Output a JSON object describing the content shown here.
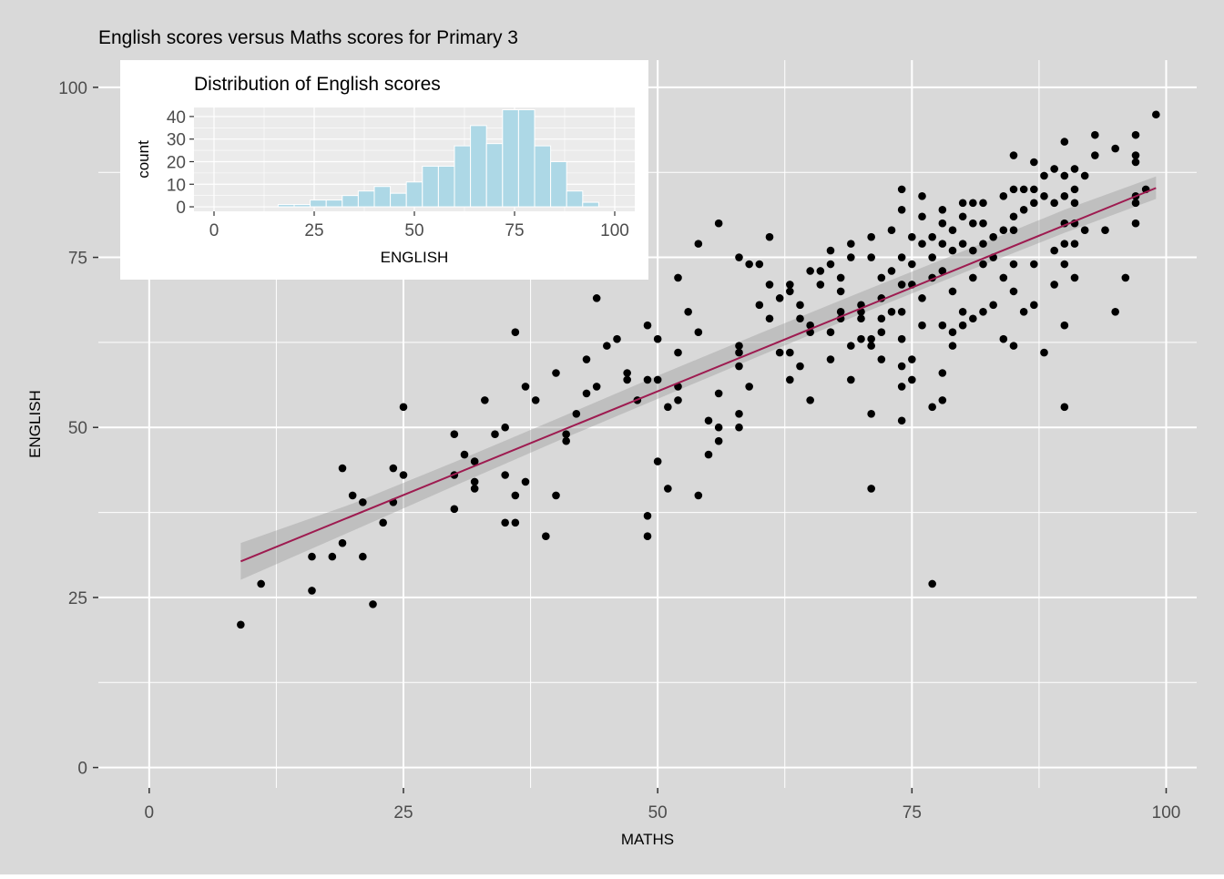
{
  "chart_data": [
    {
      "type": "scatter",
      "title": "English scores versus Maths scores for Primary 3",
      "xlabel": "MATHS",
      "ylabel": "ENGLISH",
      "xlim": [
        -5,
        103
      ],
      "ylim": [
        -3,
        104
      ],
      "x_ticks": [
        0,
        25,
        50,
        75,
        100
      ],
      "y_ticks": [
        0,
        25,
        50,
        75,
        100
      ],
      "x_tick_labels": [
        "0",
        "25",
        "50",
        "75",
        "100"
      ],
      "y_tick_labels": [
        "0",
        "25",
        "50",
        "75",
        "100"
      ],
      "grid": true,
      "points": [
        [
          9,
          21
        ],
        [
          11,
          27
        ],
        [
          16,
          26
        ],
        [
          16,
          31
        ],
        [
          18,
          31
        ],
        [
          19,
          33
        ],
        [
          19,
          44
        ],
        [
          20,
          40
        ],
        [
          21,
          39
        ],
        [
          21,
          31
        ],
        [
          22,
          24
        ],
        [
          23,
          36
        ],
        [
          24,
          44
        ],
        [
          24,
          39
        ],
        [
          25,
          43
        ],
        [
          25,
          53
        ],
        [
          30,
          49
        ],
        [
          30,
          43
        ],
        [
          30,
          38
        ],
        [
          31,
          46
        ],
        [
          32,
          45
        ],
        [
          32,
          41
        ],
        [
          32,
          42
        ],
        [
          33,
          54
        ],
        [
          34,
          49
        ],
        [
          35,
          50
        ],
        [
          35,
          43
        ],
        [
          35,
          36
        ],
        [
          36,
          36
        ],
        [
          36,
          40
        ],
        [
          36,
          64
        ],
        [
          37,
          56
        ],
        [
          37,
          42
        ],
        [
          38,
          54
        ],
        [
          39,
          34
        ],
        [
          40,
          58
        ],
        [
          40,
          40
        ],
        [
          41,
          48
        ],
        [
          41,
          49
        ],
        [
          42,
          52
        ],
        [
          43,
          55
        ],
        [
          43,
          60
        ],
        [
          44,
          56
        ],
        [
          44,
          69
        ],
        [
          45,
          62
        ],
        [
          46,
          63
        ],
        [
          47,
          58
        ],
        [
          47,
          57
        ],
        [
          48,
          54
        ],
        [
          49,
          65
        ],
        [
          49,
          37
        ],
        [
          49,
          34
        ],
        [
          49,
          57
        ],
        [
          50,
          57
        ],
        [
          50,
          45
        ],
        [
          50,
          63
        ],
        [
          51,
          41
        ],
        [
          51,
          53
        ],
        [
          52,
          56
        ],
        [
          52,
          54
        ],
        [
          52,
          61
        ],
        [
          52,
          72
        ],
        [
          53,
          67
        ],
        [
          54,
          40
        ],
        [
          54,
          64
        ],
        [
          54,
          77
        ],
        [
          55,
          46
        ],
        [
          55,
          51
        ],
        [
          56,
          48
        ],
        [
          56,
          50
        ],
        [
          56,
          55
        ],
        [
          56,
          80
        ],
        [
          58,
          75
        ],
        [
          58,
          61
        ],
        [
          58,
          62
        ],
        [
          58,
          59
        ],
        [
          58,
          52
        ],
        [
          58,
          50
        ],
        [
          59,
          74
        ],
        [
          59,
          56
        ],
        [
          60,
          74
        ],
        [
          60,
          68
        ],
        [
          61,
          78
        ],
        [
          61,
          66
        ],
        [
          61,
          71
        ],
        [
          62,
          69
        ],
        [
          62,
          61
        ],
        [
          63,
          57
        ],
        [
          63,
          61
        ],
        [
          63,
          70
        ],
        [
          63,
          71
        ],
        [
          64,
          68
        ],
        [
          64,
          66
        ],
        [
          64,
          59
        ],
        [
          65,
          54
        ],
        [
          65,
          65
        ],
        [
          65,
          64
        ],
        [
          65,
          73
        ],
        [
          66,
          73
        ],
        [
          66,
          71
        ],
        [
          67,
          76
        ],
        [
          67,
          74
        ],
        [
          67,
          60
        ],
        [
          67,
          64
        ],
        [
          68,
          67
        ],
        [
          68,
          66
        ],
        [
          68,
          70
        ],
        [
          68,
          72
        ],
        [
          69,
          77
        ],
        [
          69,
          75
        ],
        [
          69,
          57
        ],
        [
          69,
          62
        ],
        [
          70,
          68
        ],
        [
          70,
          67
        ],
        [
          70,
          66
        ],
        [
          70,
          63
        ],
        [
          71,
          75
        ],
        [
          71,
          78
        ],
        [
          71,
          63
        ],
        [
          71,
          62
        ],
        [
          71,
          52
        ],
        [
          71,
          41
        ],
        [
          72,
          72
        ],
        [
          72,
          69
        ],
        [
          72,
          64
        ],
        [
          72,
          60
        ],
        [
          72,
          66
        ],
        [
          73,
          73
        ],
        [
          73,
          67
        ],
        [
          73,
          79
        ],
        [
          74,
          85
        ],
        [
          74,
          82
        ],
        [
          74,
          75
        ],
        [
          74,
          71
        ],
        [
          74,
          67
        ],
        [
          74,
          63
        ],
        [
          74,
          59
        ],
        [
          74,
          56
        ],
        [
          74,
          51
        ],
        [
          75,
          78
        ],
        [
          75,
          74
        ],
        [
          75,
          71
        ],
        [
          75,
          60
        ],
        [
          75,
          57
        ],
        [
          76,
          84
        ],
        [
          76,
          81
        ],
        [
          76,
          77
        ],
        [
          76,
          69
        ],
        [
          76,
          65
        ],
        [
          77,
          75
        ],
        [
          77,
          78
        ],
        [
          77,
          72
        ],
        [
          77,
          53
        ],
        [
          77,
          27
        ],
        [
          78,
          82
        ],
        [
          78,
          80
        ],
        [
          78,
          77
        ],
        [
          78,
          73
        ],
        [
          78,
          65
        ],
        [
          78,
          58
        ],
        [
          78,
          54
        ],
        [
          79,
          79
        ],
        [
          79,
          76
        ],
        [
          79,
          70
        ],
        [
          79,
          64
        ],
        [
          79,
          62
        ],
        [
          80,
          83
        ],
        [
          80,
          81
        ],
        [
          80,
          77
        ],
        [
          80,
          67
        ],
        [
          80,
          65
        ],
        [
          81,
          83
        ],
        [
          81,
          80
        ],
        [
          81,
          76
        ],
        [
          81,
          72
        ],
        [
          81,
          66
        ],
        [
          82,
          83
        ],
        [
          82,
          80
        ],
        [
          82,
          77
        ],
        [
          82,
          74
        ],
        [
          82,
          67
        ],
        [
          83,
          78
        ],
        [
          83,
          75
        ],
        [
          83,
          68
        ],
        [
          84,
          84
        ],
        [
          84,
          79
        ],
        [
          84,
          72
        ],
        [
          84,
          63
        ],
        [
          85,
          90
        ],
        [
          85,
          85
        ],
        [
          85,
          81
        ],
        [
          85,
          79
        ],
        [
          85,
          74
        ],
        [
          85,
          70
        ],
        [
          85,
          62
        ],
        [
          86,
          85
        ],
        [
          86,
          82
        ],
        [
          86,
          67
        ],
        [
          87,
          89
        ],
        [
          87,
          85
        ],
        [
          87,
          83
        ],
        [
          87,
          74
        ],
        [
          87,
          68
        ],
        [
          88,
          87
        ],
        [
          88,
          84
        ],
        [
          88,
          61
        ],
        [
          89,
          88
        ],
        [
          89,
          83
        ],
        [
          89,
          76
        ],
        [
          89,
          71
        ],
        [
          90,
          92
        ],
        [
          90,
          87
        ],
        [
          90,
          84
        ],
        [
          90,
          80
        ],
        [
          90,
          77
        ],
        [
          90,
          74
        ],
        [
          90,
          65
        ],
        [
          90,
          53
        ],
        [
          91,
          88
        ],
        [
          91,
          85
        ],
        [
          91,
          83
        ],
        [
          91,
          80
        ],
        [
          91,
          77
        ],
        [
          91,
          72
        ],
        [
          92,
          87
        ],
        [
          92,
          79
        ],
        [
          93,
          93
        ],
        [
          93,
          90
        ],
        [
          94,
          79
        ],
        [
          95,
          91
        ],
        [
          95,
          67
        ],
        [
          96,
          72
        ],
        [
          97,
          93
        ],
        [
          97,
          90
        ],
        [
          97,
          89
        ],
        [
          97,
          84
        ],
        [
          97,
          83
        ],
        [
          97,
          80
        ],
        [
          98,
          85
        ],
        [
          99,
          96
        ]
      ],
      "trend_line": {
        "x": [
          9,
          99
        ],
        "y": [
          30.3,
          85.2
        ],
        "color": "#9e1b50"
      },
      "confidence_band": {
        "x": [
          9,
          20,
          30,
          40,
          50,
          60,
          70,
          80,
          90,
          99
        ],
        "lower": [
          27.6,
          34.8,
          41.4,
          47.9,
          54.2,
          60.5,
          66.7,
          72.7,
          78.6,
          83.6
        ],
        "upper": [
          33.0,
          38.8,
          44.9,
          51.2,
          57.6,
          63.8,
          69.9,
          75.9,
          82.0,
          86.9
        ],
        "color": "#999999"
      },
      "panel_background": "#d9d9d9",
      "grid_color": "#ffffff",
      "point_color": "#000000"
    },
    {
      "type": "bar",
      "title": "Distribution of English scores",
      "xlabel": "ENGLISH",
      "ylabel": "count",
      "xlim": [
        -5,
        105
      ],
      "ylim": [
        -2,
        44
      ],
      "x_ticks": [
        0,
        25,
        50,
        75,
        100
      ],
      "y_ticks": [
        0,
        10,
        20,
        30,
        40
      ],
      "x_tick_labels": [
        "0",
        "25",
        "50",
        "75",
        "100"
      ],
      "y_tick_labels": [
        "0",
        "10",
        "20",
        "30",
        "40"
      ],
      "bin_width": 4,
      "bin_centers": [
        18,
        22,
        26,
        30,
        34,
        38,
        42,
        46,
        50,
        54,
        58,
        62,
        66,
        70,
        74,
        78,
        82,
        86,
        90,
        94
      ],
      "values": [
        1,
        1,
        3,
        3,
        5,
        7,
        9,
        6,
        11,
        18,
        18,
        27,
        36,
        28,
        43,
        43,
        27,
        20,
        7,
        2
      ],
      "fill_color": "#add8e6",
      "bar_border_color": "#ffffff",
      "panel_background": "#ebebeb",
      "grid_color": "#ffffff"
    }
  ]
}
